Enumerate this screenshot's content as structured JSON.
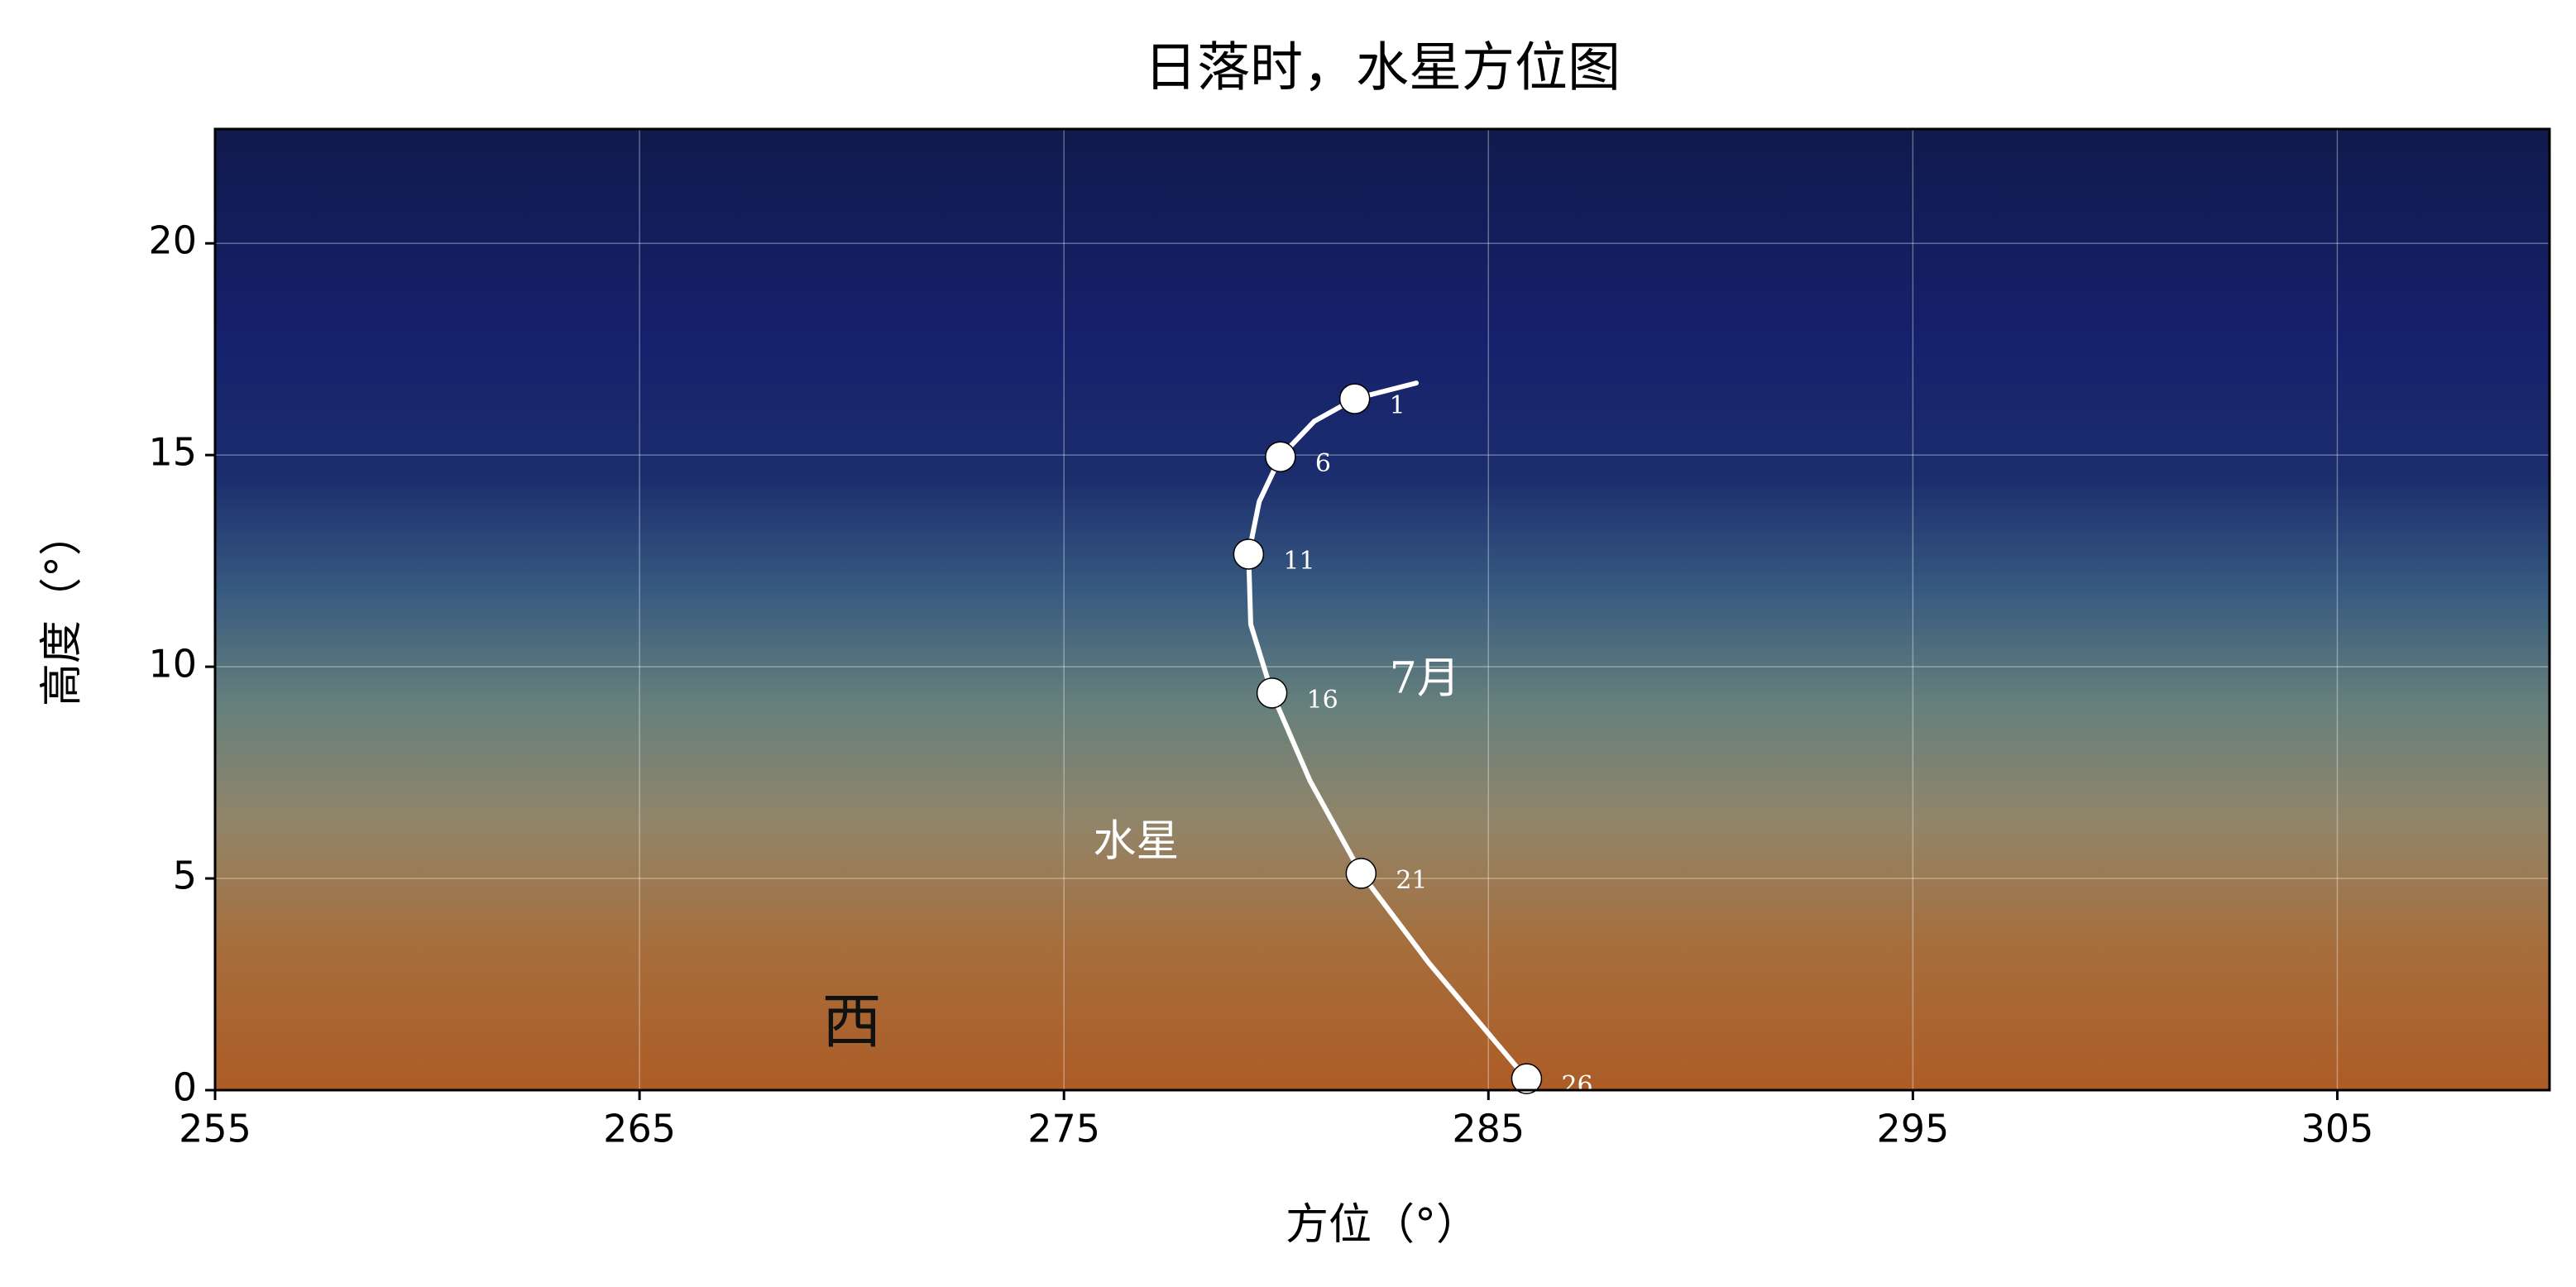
{
  "chart_data": {
    "type": "line",
    "title": "日落时，水星方位图",
    "x_label": "方位（°）",
    "y_label": "高度（°）",
    "x": [
      283.3,
      281.85,
      280.9,
      280.1,
      279.6,
      279.35,
      279.4,
      279.9,
      280.8,
      282.0,
      283.6,
      285.9
    ],
    "series": [
      {
        "color": "#ffffff",
        "values": [
          16.7,
          16.33,
          15.8,
          14.96,
          13.9,
          12.66,
          11.0,
          9.38,
          7.3,
          5.12,
          3.0,
          0.27
        ]
      }
    ],
    "markers": {
      "x": [
        281.85,
        280.1,
        279.35,
        279.9,
        282.0,
        285.9
      ],
      "y": [
        16.33,
        14.96,
        12.66,
        9.38,
        5.12,
        0.27
      ],
      "labels": [
        "1",
        "6",
        "11",
        "16",
        "21",
        "26"
      ]
    },
    "annotations": [
      {
        "text": "7月",
        "x": 283.5,
        "y": 9.65,
        "color": "#ffffff"
      },
      {
        "text": "水星",
        "x": 276.7,
        "y": 5.8,
        "color": "#ffffff"
      },
      {
        "text": "西",
        "x": 270.0,
        "y": 1.5,
        "color": "#111111"
      }
    ],
    "xlim": [
      255,
      310
    ],
    "ylim": [
      0,
      22.7
    ],
    "xticks": [
      255,
      265,
      275,
      285,
      295,
      305
    ],
    "yticks": [
      0,
      5,
      10,
      15,
      20
    ],
    "grid": true
  }
}
